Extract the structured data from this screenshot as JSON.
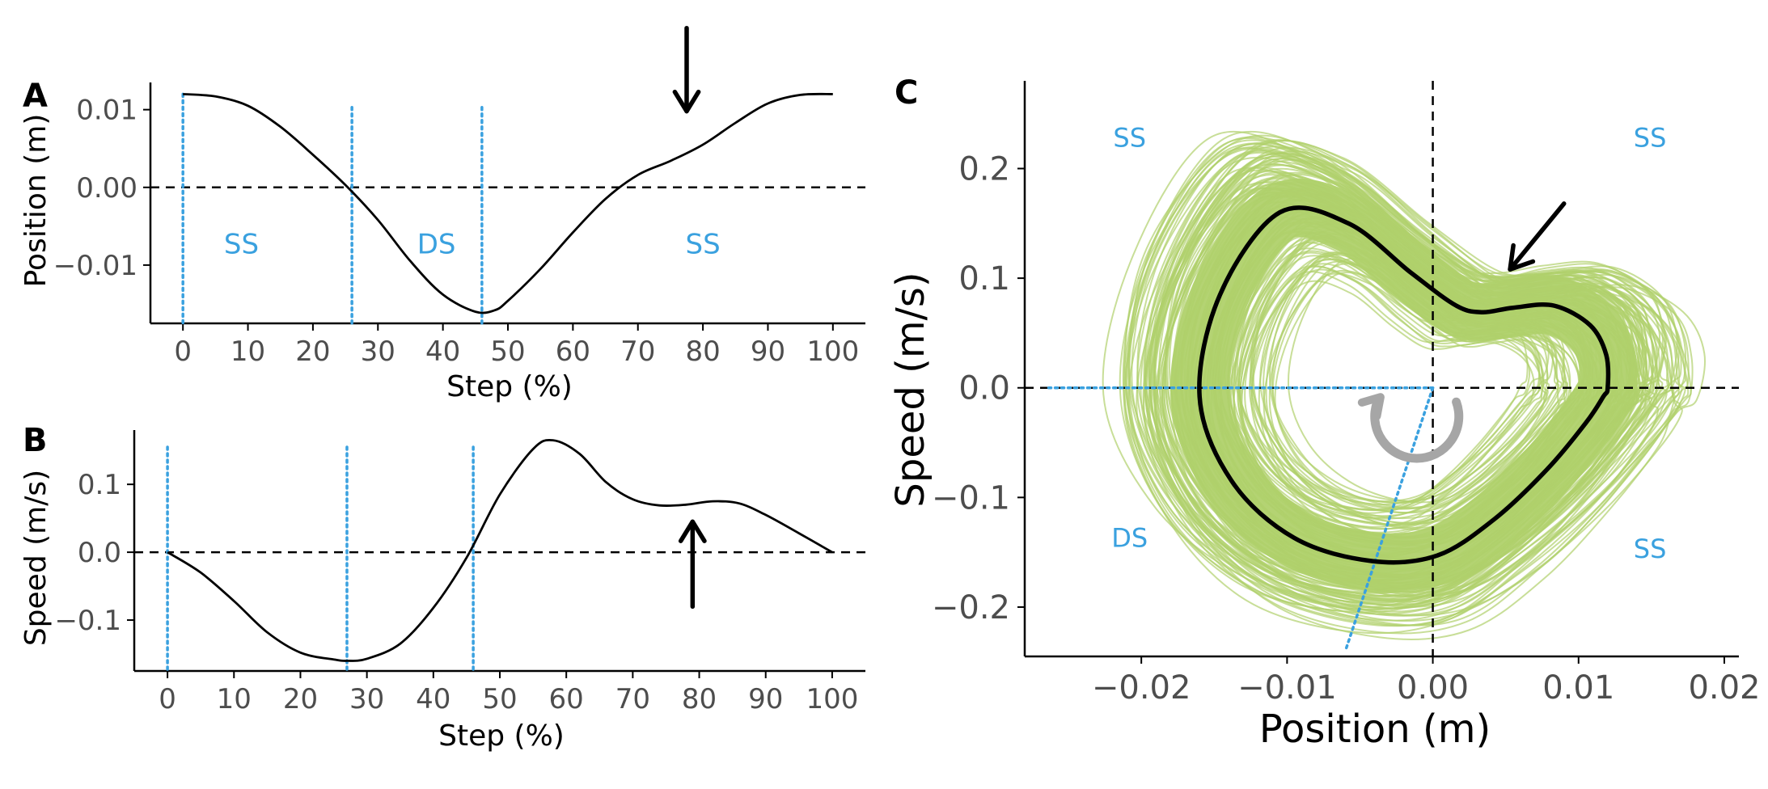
{
  "colors": {
    "phase_line": "#3aa1df",
    "trial_cloud": "#a8cc5c",
    "mean_curve": "#000000",
    "axis": "#000000",
    "rotation_arrow": "#a6a6a6"
  },
  "chart_data": [
    {
      "panel": "A",
      "type": "line",
      "xlabel": "Step (%)",
      "ylabel": "Position (m)",
      "xlim": [
        -5,
        105
      ],
      "ylim": [
        -0.0175,
        0.0135
      ],
      "xticks": [
        0,
        10,
        20,
        30,
        40,
        50,
        60,
        70,
        80,
        90,
        100
      ],
      "xtick_labels": [
        "0",
        "10",
        "20",
        "30",
        "40",
        "50",
        "60",
        "70",
        "80",
        "90",
        "100"
      ],
      "yticks": [
        0.01,
        0.0,
        -0.01
      ],
      "ytick_labels": [
        "0.01",
        "0.00",
        "−0.01"
      ],
      "reference_line_y": 0,
      "phase_boundaries": [
        0,
        26,
        46
      ],
      "regions": [
        {
          "label": "SS",
          "x": 9,
          "y": -0.0085
        },
        {
          "label": "DS",
          "x": 39,
          "y": -0.0085
        },
        {
          "label": "SS",
          "x": 80,
          "y": -0.0085
        }
      ],
      "arrow": {
        "x": 77.5,
        "from_y": 0.0205,
        "to_y": 0.0098,
        "direction": "down"
      },
      "series": [
        {
          "name": "mean position",
          "x": [
            0,
            5,
            10,
            15,
            20,
            25,
            30,
            35,
            40,
            45,
            48,
            50,
            55,
            60,
            65,
            70,
            75,
            80,
            85,
            90,
            95,
            100
          ],
          "y": [
            0.012,
            0.0117,
            0.0105,
            0.0078,
            0.0042,
            0.0003,
            -0.0042,
            -0.0095,
            -0.0138,
            -0.016,
            -0.0158,
            -0.0146,
            -0.0105,
            -0.0058,
            -0.0015,
            0.0016,
            0.0034,
            0.0055,
            0.0083,
            0.0108,
            0.0119,
            0.012
          ]
        }
      ]
    },
    {
      "panel": "B",
      "type": "line",
      "xlabel": "Step (%)",
      "ylabel": "Speed (m/s)",
      "xlim": [
        -5,
        105
      ],
      "ylim": [
        -0.175,
        0.18
      ],
      "xticks": [
        0,
        10,
        20,
        30,
        40,
        50,
        60,
        70,
        80,
        90,
        100
      ],
      "xtick_labels": [
        "0",
        "10",
        "20",
        "30",
        "40",
        "50",
        "60",
        "70",
        "80",
        "90",
        "100"
      ],
      "yticks": [
        0.1,
        0.0,
        -0.1
      ],
      "ytick_labels": [
        "0.1",
        "0.0",
        "−0.1"
      ],
      "reference_line_y": 0,
      "phase_boundaries": [
        0,
        27,
        46
      ],
      "arrow": {
        "x": 79,
        "from_y": -0.08,
        "to_y": 0.045,
        "direction": "up"
      },
      "series": [
        {
          "name": "mean speed",
          "x": [
            0,
            5,
            10,
            15,
            20,
            25,
            27,
            30,
            35,
            40,
            45,
            50,
            55,
            58,
            62,
            66,
            70,
            74,
            78,
            82,
            86,
            90,
            95,
            100
          ],
          "y": [
            0.0,
            -0.03,
            -0.072,
            -0.118,
            -0.148,
            -0.158,
            -0.16,
            -0.157,
            -0.135,
            -0.082,
            -0.008,
            0.085,
            0.152,
            0.165,
            0.145,
            0.103,
            0.078,
            0.069,
            0.07,
            0.075,
            0.072,
            0.055,
            0.028,
            0.0
          ]
        }
      ]
    },
    {
      "panel": "C",
      "type": "line",
      "xlabel": "Position (m)",
      "ylabel": "Speed (m/s)",
      "xlim": [
        -0.028,
        0.021
      ],
      "ylim": [
        -0.245,
        0.28
      ],
      "xticks": [
        -0.02,
        -0.01,
        0.0,
        0.01,
        0.02
      ],
      "xtick_labels": [
        "−0.02",
        "−0.01",
        "0.00",
        "0.01",
        "0.02"
      ],
      "yticks": [
        0.2,
        0.1,
        0.0,
        -0.1,
        -0.2
      ],
      "ytick_labels": [
        "0.2",
        "0.1",
        "0.0",
        "−0.1",
        "−0.2"
      ],
      "reference_lines": {
        "x": 0,
        "y": 0
      },
      "phase_lines": [
        {
          "from": [
            0.0,
            0.0
          ],
          "to": [
            -0.0265,
            0.0
          ]
        },
        {
          "from": [
            0.0,
            0.0
          ],
          "to": [
            -0.006,
            -0.24
          ]
        }
      ],
      "regions": [
        {
          "label": "SS",
          "x": -0.0208,
          "y": 0.22
        },
        {
          "label": "SS",
          "x": 0.0149,
          "y": 0.22
        },
        {
          "label": "DS",
          "x": -0.0208,
          "y": -0.145
        },
        {
          "label": "SS",
          "x": 0.0149,
          "y": -0.155
        }
      ],
      "arrow": {
        "from": [
          0.009,
          0.168
        ],
        "to": [
          0.0053,
          0.108
        ],
        "direction": "down-left"
      },
      "rotation_direction": "clockwise",
      "trial_cloud": {
        "name": "individual steps",
        "center": [
          -0.002,
          -0.005
        ],
        "x_range": [
          -0.0225,
          0.0173
        ],
        "y_range": [
          -0.22,
          0.255
        ]
      },
      "series": [
        {
          "name": "mean trajectory",
          "x": [
            0.012,
            0.0119,
            0.0108,
            0.0083,
            0.0055,
            0.0034,
            0.0016,
            -0.0015,
            -0.0058,
            -0.0105,
            -0.0146,
            -0.016,
            -0.0138,
            -0.0095,
            -0.0042,
            0.0003,
            0.0042,
            0.0078,
            0.0105,
            0.0117,
            0.012
          ],
          "y": [
            0.0,
            0.03,
            0.057,
            0.075,
            0.073,
            0.069,
            0.075,
            0.105,
            0.15,
            0.16,
            0.085,
            -0.008,
            -0.085,
            -0.137,
            -0.158,
            -0.153,
            -0.12,
            -0.075,
            -0.032,
            -0.008,
            0.0
          ]
        }
      ]
    }
  ]
}
